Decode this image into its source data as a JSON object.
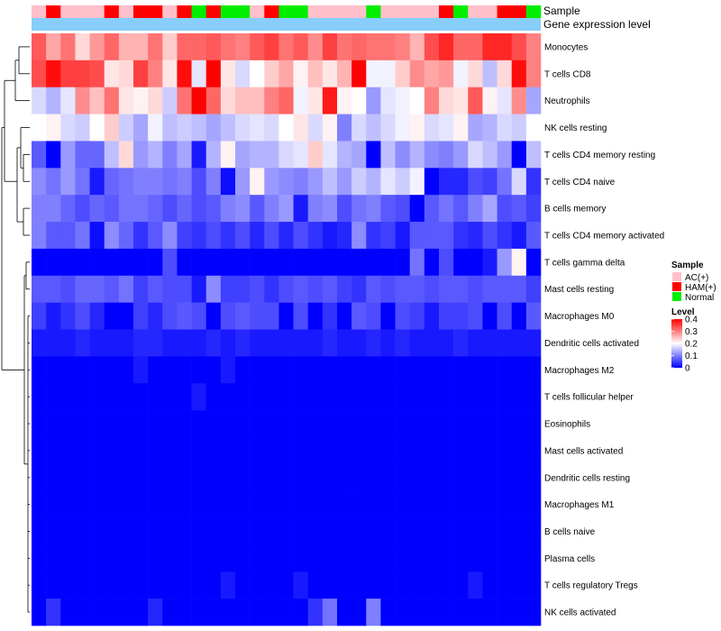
{
  "chart_data": {
    "type": "heatmap",
    "annotation_labels": [
      "Sample",
      "Gene expression level"
    ],
    "samples": [
      "AC(+)",
      "HAM(+)",
      "AC(+)",
      "AC(+)",
      "AC(+)",
      "HAM(+)",
      "AC(+)",
      "HAM(+)",
      "HAM(+)",
      "AC(+)",
      "HAM(+)",
      "Normal",
      "HAM(+)",
      "Normal",
      "Normal",
      "AC(+)",
      "HAM(+)",
      "Normal",
      "Normal",
      "AC(+)",
      "AC(+)",
      "AC(+)",
      "AC(+)",
      "Normal",
      "AC(+)",
      "AC(+)",
      "AC(+)",
      "AC(+)",
      "HAM(+)",
      "Normal",
      "AC(+)",
      "AC(+)",
      "HAM(+)",
      "HAM(+)",
      "Normal"
    ],
    "rows": [
      "Monocytes",
      "T cells CD8",
      "Neutrophils",
      "NK cells resting",
      "T cells CD4 memory resting",
      "T cells CD4 naive",
      "B cells memory",
      "T cells CD4 memory activated",
      "T cells gamma delta",
      "Mast cells resting",
      "Macrophages M0",
      "Dendritic cells activated",
      "Macrophages M2",
      "T cells follicular helper",
      "Eosinophils",
      "Mast cells activated",
      "Dendritic cells resting",
      "Macrophages M1",
      "B cells naive",
      "Plasma cells",
      "T cells regulatory  Tregs",
      "NK cells activated"
    ],
    "values": [
      [
        0.33,
        0.27,
        0.31,
        0.23,
        0.28,
        0.32,
        0.26,
        0.26,
        0.31,
        0.24,
        0.32,
        0.32,
        0.33,
        0.31,
        0.3,
        0.33,
        0.35,
        0.31,
        0.33,
        0.29,
        0.35,
        0.31,
        0.32,
        0.31,
        0.31,
        0.3,
        0.26,
        0.34,
        0.37,
        0.32,
        0.32,
        0.37,
        0.37,
        0.34,
        0.3
      ],
      [
        0.34,
        0.39,
        0.35,
        0.35,
        0.34,
        0.22,
        0.23,
        0.35,
        0.3,
        0.22,
        0.39,
        0.18,
        0.4,
        0.22,
        0.17,
        0.2,
        0.24,
        0.27,
        0.21,
        0.25,
        0.22,
        0.26,
        0.4,
        0.19,
        0.19,
        0.24,
        0.29,
        0.27,
        0.28,
        0.19,
        0.23,
        0.15,
        0.23,
        0.39,
        0.3
      ],
      [
        0.17,
        0.14,
        0.18,
        0.29,
        0.25,
        0.31,
        0.22,
        0.21,
        0.23,
        0.16,
        0.31,
        0.4,
        0.32,
        0.23,
        0.25,
        0.25,
        0.3,
        0.32,
        0.19,
        0.22,
        0.38,
        0.21,
        0.2,
        0.12,
        0.18,
        0.19,
        0.2,
        0.3,
        0.23,
        0.22,
        0.33,
        0.21,
        0.18,
        0.29,
        0.13
      ],
      [
        0.2,
        0.21,
        0.17,
        0.16,
        0.2,
        0.24,
        0.16,
        0.13,
        0.19,
        0.15,
        0.16,
        0.15,
        0.13,
        0.15,
        0.17,
        0.18,
        0.17,
        0.2,
        0.22,
        0.17,
        0.21,
        0.1,
        0.17,
        0.15,
        0.17,
        0.19,
        0.21,
        0.17,
        0.18,
        0.21,
        0.13,
        0.14,
        0.17,
        0.16,
        0.2
      ],
      [
        0.07,
        0.0,
        0.12,
        0.08,
        0.08,
        0.15,
        0.23,
        0.12,
        0.14,
        0.1,
        0.13,
        0.02,
        0.14,
        0.21,
        0.13,
        0.14,
        0.14,
        0.17,
        0.18,
        0.24,
        0.18,
        0.14,
        0.13,
        0.0,
        0.15,
        0.11,
        0.14,
        0.11,
        0.1,
        0.12,
        0.17,
        0.15,
        0.12,
        0.0,
        0.15
      ],
      [
        0.11,
        0.09,
        0.12,
        0.09,
        0.02,
        0.08,
        0.09,
        0.1,
        0.1,
        0.09,
        0.1,
        0.06,
        0.1,
        0.01,
        0.12,
        0.21,
        0.12,
        0.11,
        0.1,
        0.12,
        0.15,
        0.12,
        0.16,
        0.14,
        0.18,
        0.16,
        0.19,
        0.0,
        0.03,
        0.03,
        0.06,
        0.05,
        0.09,
        0.17,
        0.04
      ],
      [
        0.1,
        0.1,
        0.08,
        0.06,
        0.08,
        0.07,
        0.09,
        0.09,
        0.08,
        0.06,
        0.08,
        0.06,
        0.07,
        0.1,
        0.11,
        0.07,
        0.1,
        0.12,
        0.02,
        0.1,
        0.11,
        0.06,
        0.09,
        0.1,
        0.07,
        0.06,
        0.0,
        0.07,
        0.09,
        0.07,
        0.1,
        0.13,
        0.06,
        0.07,
        0.05
      ],
      [
        0.1,
        0.07,
        0.07,
        0.09,
        0.01,
        0.11,
        0.08,
        0.04,
        0.07,
        0.11,
        0.05,
        0.04,
        0.06,
        0.04,
        0.06,
        0.03,
        0.06,
        0.03,
        0.06,
        0.04,
        0.02,
        0.03,
        0.11,
        0.04,
        0.05,
        0.02,
        0.07,
        0.07,
        0.07,
        0.04,
        0.03,
        0.06,
        0.04,
        0.02,
        0.07
      ],
      [
        0.0,
        0.0,
        0.0,
        0.0,
        0.0,
        0.0,
        0.0,
        0.0,
        0.0,
        0.06,
        0.0,
        0.0,
        0.0,
        0.0,
        0.0,
        0.0,
        0.0,
        0.0,
        0.0,
        0.0,
        0.0,
        0.0,
        0.0,
        0.0,
        0.0,
        0.0,
        0.09,
        0.0,
        0.06,
        0.0,
        0.0,
        0.02,
        0.12,
        0.21,
        0.0
      ],
      [
        0.07,
        0.07,
        0.06,
        0.08,
        0.08,
        0.07,
        0.09,
        0.05,
        0.07,
        0.06,
        0.06,
        0.02,
        0.11,
        0.05,
        0.05,
        0.06,
        0.04,
        0.06,
        0.07,
        0.06,
        0.07,
        0.05,
        0.04,
        0.07,
        0.06,
        0.07,
        0.07,
        0.06,
        0.07,
        0.07,
        0.06,
        0.07,
        0.07,
        0.07,
        0.05
      ],
      [
        0.05,
        0.02,
        0.04,
        0.06,
        0.03,
        0.0,
        0.0,
        0.05,
        0.03,
        0.06,
        0.07,
        0.06,
        0.0,
        0.06,
        0.07,
        0.06,
        0.06,
        0.0,
        0.06,
        0.0,
        0.04,
        0.0,
        0.07,
        0.06,
        0.0,
        0.06,
        0.05,
        0.02,
        0.05,
        0.05,
        0.06,
        0.0,
        0.06,
        0.0,
        0.07
      ],
      [
        0.02,
        0.02,
        0.02,
        0.03,
        0.02,
        0.02,
        0.02,
        0.03,
        0.03,
        0.02,
        0.02,
        0.02,
        0.03,
        0.02,
        0.03,
        0.02,
        0.02,
        0.02,
        0.02,
        0.02,
        0.03,
        0.02,
        0.02,
        0.03,
        0.02,
        0.03,
        0.02,
        0.02,
        0.02,
        0.03,
        0.02,
        0.02,
        0.02,
        0.02,
        0.02
      ],
      [
        0.0,
        0.0,
        0.0,
        0.0,
        0.0,
        0.0,
        0.0,
        0.02,
        0.0,
        0.0,
        0.0,
        0.0,
        0.0,
        0.02,
        0.0,
        0.0,
        0.0,
        0.0,
        0.0,
        0.0,
        0.0,
        0.0,
        0.0,
        0.0,
        0.0,
        0.0,
        0.0,
        0.0,
        0.0,
        0.0,
        0.0,
        0.0,
        0.0,
        0.0,
        0.0
      ],
      [
        0.0,
        0.0,
        0.0,
        0.0,
        0.0,
        0.0,
        0.0,
        0.0,
        0.0,
        0.0,
        0.0,
        0.02,
        0.0,
        0.0,
        0.0,
        0.0,
        0.0,
        0.0,
        0.0,
        0.0,
        0.0,
        0.0,
        0.0,
        0.0,
        0.0,
        0.0,
        0.0,
        0.0,
        0.0,
        0.0,
        0.0,
        0.0,
        0.0,
        0.0,
        0.0
      ],
      [
        0.0,
        0.0,
        0.0,
        0.0,
        0.0,
        0.0,
        0.0,
        0.0,
        0.0,
        0.0,
        0.0,
        0.0,
        0.0,
        0.0,
        0.0,
        0.0,
        0.0,
        0.0,
        0.0,
        0.0,
        0.0,
        0.0,
        0.0,
        0.0,
        0.0,
        0.0,
        0.0,
        0.0,
        0.0,
        0.0,
        0.0,
        0.0,
        0.0,
        0.0,
        0.0
      ],
      [
        0.0,
        0.0,
        0.0,
        0.0,
        0.0,
        0.0,
        0.0,
        0.0,
        0.0,
        0.0,
        0.0,
        0.0,
        0.0,
        0.0,
        0.0,
        0.0,
        0.0,
        0.0,
        0.0,
        0.0,
        0.0,
        0.0,
        0.0,
        0.0,
        0.0,
        0.0,
        0.0,
        0.0,
        0.0,
        0.0,
        0.0,
        0.0,
        0.0,
        0.0,
        0.0
      ],
      [
        0.0,
        0.0,
        0.0,
        0.0,
        0.0,
        0.0,
        0.0,
        0.0,
        0.0,
        0.0,
        0.0,
        0.0,
        0.0,
        0.0,
        0.0,
        0.0,
        0.0,
        0.0,
        0.0,
        0.0,
        0.0,
        0.0,
        0.0,
        0.0,
        0.0,
        0.0,
        0.0,
        0.0,
        0.0,
        0.0,
        0.0,
        0.0,
        0.0,
        0.0,
        0.0
      ],
      [
        0.0,
        0.0,
        0.0,
        0.0,
        0.0,
        0.0,
        0.0,
        0.0,
        0.0,
        0.0,
        0.0,
        0.0,
        0.0,
        0.0,
        0.0,
        0.0,
        0.0,
        0.0,
        0.0,
        0.0,
        0.0,
        0.0,
        0.0,
        0.0,
        0.0,
        0.0,
        0.0,
        0.0,
        0.0,
        0.0,
        0.0,
        0.0,
        0.0,
        0.0,
        0.0
      ],
      [
        0.0,
        0.0,
        0.0,
        0.0,
        0.0,
        0.0,
        0.0,
        0.0,
        0.0,
        0.0,
        0.0,
        0.0,
        0.0,
        0.0,
        0.0,
        0.0,
        0.0,
        0.0,
        0.0,
        0.0,
        0.0,
        0.0,
        0.0,
        0.0,
        0.0,
        0.0,
        0.0,
        0.0,
        0.0,
        0.0,
        0.0,
        0.0,
        0.0,
        0.0,
        0.0
      ],
      [
        0.0,
        0.0,
        0.0,
        0.0,
        0.0,
        0.0,
        0.0,
        0.0,
        0.0,
        0.0,
        0.0,
        0.0,
        0.0,
        0.0,
        0.0,
        0.0,
        0.0,
        0.0,
        0.0,
        0.0,
        0.0,
        0.0,
        0.0,
        0.0,
        0.0,
        0.0,
        0.0,
        0.0,
        0.0,
        0.0,
        0.0,
        0.0,
        0.0,
        0.0,
        0.0
      ],
      [
        0.0,
        0.0,
        0.0,
        0.0,
        0.0,
        0.0,
        0.0,
        0.0,
        0.0,
        0.0,
        0.0,
        0.0,
        0.0,
        0.02,
        0.0,
        0.0,
        0.0,
        0.0,
        0.02,
        0.0,
        0.0,
        0.0,
        0.0,
        0.0,
        0.0,
        0.0,
        0.0,
        0.0,
        0.0,
        0.0,
        0.02,
        0.0,
        0.0,
        0.0,
        0.0
      ],
      [
        0.0,
        0.04,
        0.0,
        0.0,
        0.0,
        0.0,
        0.0,
        0.0,
        0.03,
        0.0,
        0.0,
        0.0,
        0.0,
        0.0,
        0.0,
        0.0,
        0.0,
        0.0,
        0.0,
        0.04,
        0.09,
        0.0,
        0.0,
        0.1,
        0.0,
        0.0,
        0.0,
        0.0,
        0.0,
        0.0,
        0.0,
        0.0,
        0.0,
        0.0,
        0.0
      ]
    ],
    "legend": {
      "sample_title": "Sample",
      "groups": [
        {
          "name": "AC(+)",
          "color": "#FFC0CB"
        },
        {
          "name": "HAM(+)",
          "color": "#FF0000"
        },
        {
          "name": "Normal",
          "color": "#00EE00"
        }
      ],
      "level_title": "Level",
      "level_ticks": [
        "0.4",
        "0.3",
        "0.2",
        "0.1",
        "0"
      ],
      "level_range": [
        0,
        0.4
      ]
    },
    "colors": {
      "low": "#0000FF",
      "mid": "#FFFFFF",
      "high": "#FF0000",
      "expression_bar": "#87CEFA"
    }
  }
}
